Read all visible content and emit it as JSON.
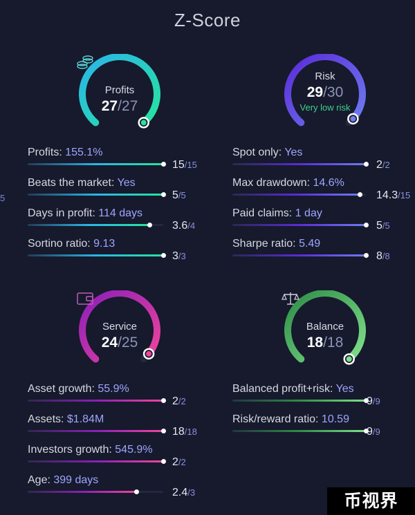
{
  "title": "Z-Score",
  "edge_fragment": "5",
  "sections": {
    "profits": {
      "label": "Profits",
      "score": "27",
      "max": "27",
      "sub": "",
      "icon": "coins-icon",
      "fraction": 1.0,
      "colors": [
        "#2bb5e8",
        "#27e3a0"
      ],
      "metrics": [
        {
          "label": "Profits:",
          "value": "155.1%",
          "score": "15",
          "max": "15",
          "fraction": 1.0
        },
        {
          "label": "Beats the market:",
          "value": "Yes",
          "score": "5",
          "max": "5",
          "fraction": 1.0
        },
        {
          "label": "Days in profit:",
          "value": "114 days",
          "score": "3.6",
          "max": "4",
          "fraction": 0.9
        },
        {
          "label": "Sortino ratio:",
          "value": "9.13",
          "score": "3",
          "max": "3",
          "fraction": 1.0
        }
      ]
    },
    "risk": {
      "label": "Risk",
      "score": "29",
      "max": "30",
      "sub": "Very low risk",
      "icon": "",
      "fraction": 0.97,
      "colors": [
        "#5a2bd8",
        "#6f7cf0"
      ],
      "metrics": [
        {
          "label": "Spot only:",
          "value": "Yes",
          "score": "2",
          "max": "2",
          "fraction": 1.0
        },
        {
          "label": "Max drawdown:",
          "value": "14.6%",
          "score": "14.3",
          "max": "15",
          "fraction": 0.953
        },
        {
          "label": "Paid claims:",
          "value": "1 day",
          "score": "5",
          "max": "5",
          "fraction": 1.0
        },
        {
          "label": "Sharpe ratio:",
          "value": "5.49",
          "score": "8",
          "max": "8",
          "fraction": 1.0
        }
      ]
    },
    "service": {
      "label": "Service",
      "score": "24",
      "max": "25",
      "sub": "",
      "icon": "wallet-icon",
      "fraction": 0.96,
      "colors": [
        "#8a1fb8",
        "#f0449e"
      ],
      "metrics": [
        {
          "label": "Asset growth:",
          "value": "55.9%",
          "score": "2",
          "max": "2",
          "fraction": 1.0
        },
        {
          "label": "Assets:",
          "value": "$1.84M",
          "score": "18",
          "max": "18",
          "fraction": 1.0
        },
        {
          "label": "Investors growth:",
          "value": "545.9%",
          "score": "2",
          "max": "2",
          "fraction": 1.0
        },
        {
          "label": "Age:",
          "value": "399 days",
          "score": "2.4",
          "max": "3",
          "fraction": 0.8
        }
      ]
    },
    "balance": {
      "label": "Balance",
      "score": "18",
      "max": "18",
      "sub": "",
      "icon": "scales-icon",
      "fraction": 1.0,
      "colors": [
        "#2e8c47",
        "#7fe08a"
      ],
      "metrics": [
        {
          "label": "Balanced profit+risk:",
          "value": "Yes",
          "score": "9",
          "max": "9",
          "fraction": 1.0
        },
        {
          "label": "Risk/reward ratio:",
          "value": "10.59",
          "score": "9",
          "max": "9",
          "fraction": 1.0
        }
      ]
    }
  },
  "watermark": "币视界"
}
